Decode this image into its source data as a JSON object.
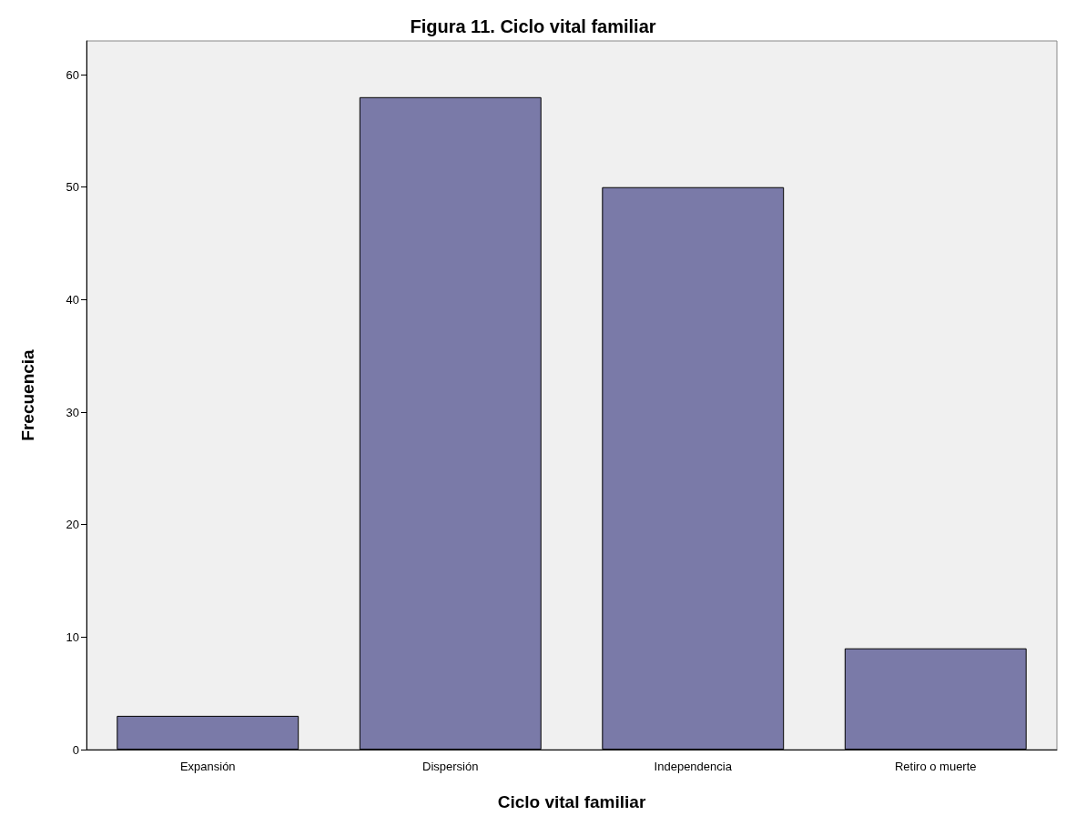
{
  "chart_data": {
    "type": "bar",
    "title": "Figura 11. Ciclo vital familiar",
    "xlabel": "Ciclo vital familiar",
    "ylabel": "Frecuencia",
    "categories": [
      "Expansión",
      "Dispersión",
      "Independencia",
      "Retiro o muerte"
    ],
    "values": [
      3,
      58,
      50,
      9
    ],
    "color": "#7a7aa8",
    "ylim": [
      0,
      63
    ],
    "yticks": [
      0,
      10,
      20,
      30,
      40,
      50,
      60
    ],
    "grid": false
  }
}
